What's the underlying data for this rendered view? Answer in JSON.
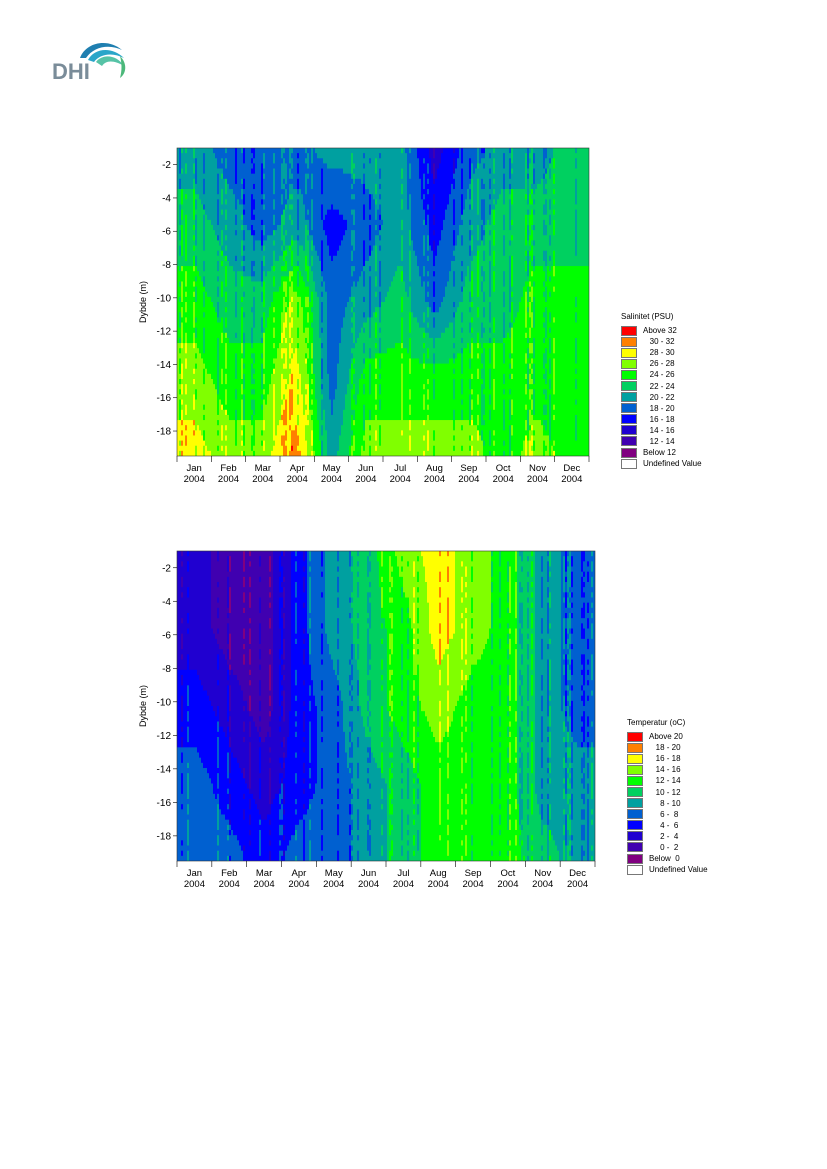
{
  "logo": {
    "text": "DHI"
  },
  "chart_data": [
    {
      "type": "heatmap",
      "ylabel": "Dybde (m)",
      "ylim": [
        -19.5,
        -1
      ],
      "yticks": [
        -2,
        -4,
        -6,
        -8,
        -10,
        -12,
        -14,
        -16,
        -18
      ],
      "x_tick_labels": [
        [
          "Jan",
          "2004"
        ],
        [
          "Feb",
          "2004"
        ],
        [
          "Mar",
          "2004"
        ],
        [
          "Apr",
          "2004"
        ],
        [
          "May",
          "2004"
        ],
        [
          "Jun",
          "2004"
        ],
        [
          "Jul",
          "2004"
        ],
        [
          "Aug",
          "2004"
        ],
        [
          "Sep",
          "2004"
        ],
        [
          "Oct",
          "2004"
        ],
        [
          "Nov",
          "2004"
        ],
        [
          "Dec",
          "2004"
        ]
      ],
      "legend": {
        "title": "Salinitet (PSU)",
        "placement": "right",
        "entries": [
          {
            "label": "Above 32",
            "color": "#ff0000"
          },
          {
            "label": "   30 - 32",
            "color": "#ff8000"
          },
          {
            "label": "   28 - 30",
            "color": "#ffff00"
          },
          {
            "label": "   26 - 28",
            "color": "#80ff00"
          },
          {
            "label": "   24 - 26",
            "color": "#00ff00"
          },
          {
            "label": "   22 - 24",
            "color": "#00d060"
          },
          {
            "label": "   20 - 22",
            "color": "#00a0a0"
          },
          {
            "label": "   18 - 20",
            "color": "#0060d0"
          },
          {
            "label": "   16 - 18",
            "color": "#0000ff"
          },
          {
            "label": "   14 - 16",
            "color": "#2000d0"
          },
          {
            "label": "   12 - 14",
            "color": "#4000b0"
          },
          {
            "label": "Below 12",
            "color": "#800080"
          },
          {
            "label": "Undefined Value",
            "color": "#ffffff"
          }
        ]
      },
      "months": [
        "Jan",
        "Feb",
        "Mar",
        "Apr",
        "May",
        "Jun",
        "Jul",
        "Aug",
        "Sep",
        "Oct",
        "Nov",
        "Dec"
      ],
      "depths": [
        -2,
        -6,
        -10,
        -14,
        -18
      ],
      "class_grid": [
        [
          6,
          7,
          7,
          7,
          6,
          6,
          6,
          9,
          7,
          6,
          6,
          5
        ],
        [
          5,
          6,
          7,
          6,
          8,
          7,
          6,
          8,
          6,
          5,
          5,
          5
        ],
        [
          4,
          5,
          5,
          3,
          7,
          6,
          5,
          7,
          5,
          5,
          4,
          4
        ],
        [
          3,
          4,
          4,
          2,
          7,
          4,
          4,
          4,
          4,
          4,
          4,
          4
        ],
        [
          2,
          3,
          3,
          1,
          6,
          3,
          3,
          3,
          3,
          4,
          3,
          4
        ]
      ]
    },
    {
      "type": "heatmap",
      "ylabel": "Dybde (m)",
      "ylim": [
        -19.5,
        -1
      ],
      "yticks": [
        -2,
        -4,
        -6,
        -8,
        -10,
        -12,
        -14,
        -16,
        -18
      ],
      "x_tick_labels": [
        [
          "Jan",
          "2004"
        ],
        [
          "Feb",
          "2004"
        ],
        [
          "Mar",
          "2004"
        ],
        [
          "Apr",
          "2004"
        ],
        [
          "May",
          "2004"
        ],
        [
          "Jun",
          "2004"
        ],
        [
          "Jul",
          "2004"
        ],
        [
          "Aug",
          "2004"
        ],
        [
          "Sep",
          "2004"
        ],
        [
          "Oct",
          "2004"
        ],
        [
          "Nov",
          "2004"
        ],
        [
          "Dec",
          "2004"
        ]
      ],
      "legend": {
        "title": "Temperatur (oC)",
        "placement": "right",
        "entries": [
          {
            "label": "Above 20",
            "color": "#ff0000"
          },
          {
            "label": "   18 - 20",
            "color": "#ff8000"
          },
          {
            "label": "   16 - 18",
            "color": "#ffff00"
          },
          {
            "label": "   14 - 16",
            "color": "#80ff00"
          },
          {
            "label": "   12 - 14",
            "color": "#00ff00"
          },
          {
            "label": "   10 - 12",
            "color": "#00d060"
          },
          {
            "label": "     8 - 10",
            "color": "#00a0a0"
          },
          {
            "label": "     6 -  8",
            "color": "#0060d0"
          },
          {
            "label": "     4 -  6",
            "color": "#0000ff"
          },
          {
            "label": "     2 -  4",
            "color": "#2000d0"
          },
          {
            "label": "     0 -  2",
            "color": "#4000b0"
          },
          {
            "label": "Below  0",
            "color": "#800080"
          },
          {
            "label": "Undefined Value",
            "color": "#ffffff"
          }
        ]
      },
      "months": [
        "Jan",
        "Feb",
        "Mar",
        "Apr",
        "May",
        "Jun",
        "Jul",
        "Aug",
        "Sep",
        "Oct",
        "Nov",
        "Dec"
      ],
      "depths": [
        -2,
        -6,
        -10,
        -14,
        -18
      ],
      "class_grid": [
        [
          9,
          10,
          10,
          8,
          6,
          5,
          3,
          2,
          3,
          4,
          6,
          7
        ],
        [
          9,
          10,
          10,
          8,
          6,
          5,
          4,
          2,
          3,
          4,
          6,
          7
        ],
        [
          8,
          9,
          10,
          8,
          7,
          5,
          4,
          3,
          4,
          4,
          6,
          7
        ],
        [
          7,
          8,
          9,
          8,
          7,
          6,
          5,
          4,
          4,
          4,
          6,
          6
        ],
        [
          7,
          7,
          8,
          7,
          7,
          6,
          5,
          4,
          4,
          4,
          5,
          6
        ]
      ]
    }
  ]
}
